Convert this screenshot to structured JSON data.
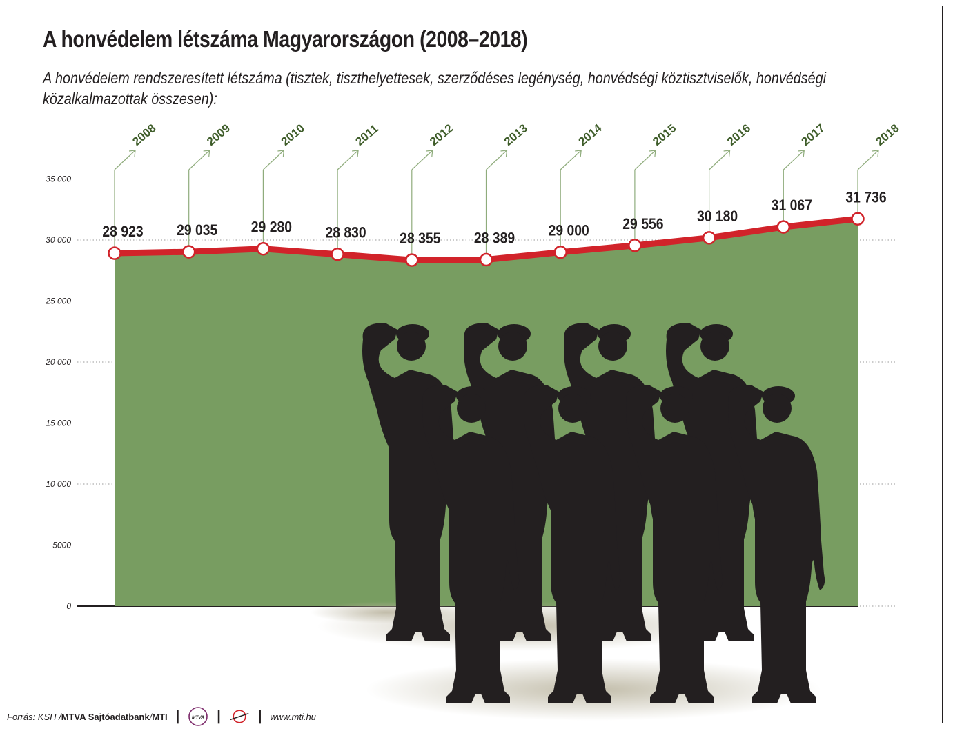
{
  "title": "A honvédelem létszáma Magyarországon (2008–2018)",
  "subtitle": "A honvédelem rendszeresített létszáma (tisztek, tiszthelyettesek, szerződéses legénység, honvédségi köztisztviselők, honvédségi közalkalmazottak összesen):",
  "chart_data": {
    "type": "area",
    "title": "A honvédelem létszáma Magyarországon (2008–2018)",
    "ylabel": "",
    "xlabel": "",
    "ylim": [
      0,
      35000
    ],
    "yticks": [
      0,
      5000,
      10000,
      15000,
      20000,
      25000,
      30000,
      35000
    ],
    "ytick_labels": [
      "0",
      "5000",
      "10 000",
      "15 000",
      "20 000",
      "25 000",
      "30 000",
      "35 000"
    ],
    "grid": true,
    "categories": [
      "2008",
      "2009",
      "2010",
      "2011",
      "2012",
      "2013",
      "2014",
      "2015",
      "2016",
      "2017",
      "2018"
    ],
    "values": [
      28923,
      29035,
      29280,
      28830,
      28355,
      28389,
      29000,
      29556,
      30180,
      31067,
      31736
    ],
    "value_labels": [
      "28 923",
      "29 035",
      "29 280",
      "28 830",
      "28 355",
      "28 389",
      "29 000",
      "29 556",
      "30 180",
      "31 067",
      "31 736"
    ],
    "colors": {
      "area": "#789d61",
      "line": "#d1232a",
      "year_label": "#3f5d2a",
      "arrow": "#8fac7c"
    }
  },
  "footer": {
    "source_prefix": "Forrás: KSH / ",
    "source_bold": "MTVA Sajtóadatbank",
    "source_slash": " / ",
    "source_mti": "MTI",
    "separator": "|",
    "mtva_logo_text": "MTVA",
    "website": "www.mti.hu",
    "icons": [
      "mtva-logo",
      "mti-logo"
    ]
  }
}
